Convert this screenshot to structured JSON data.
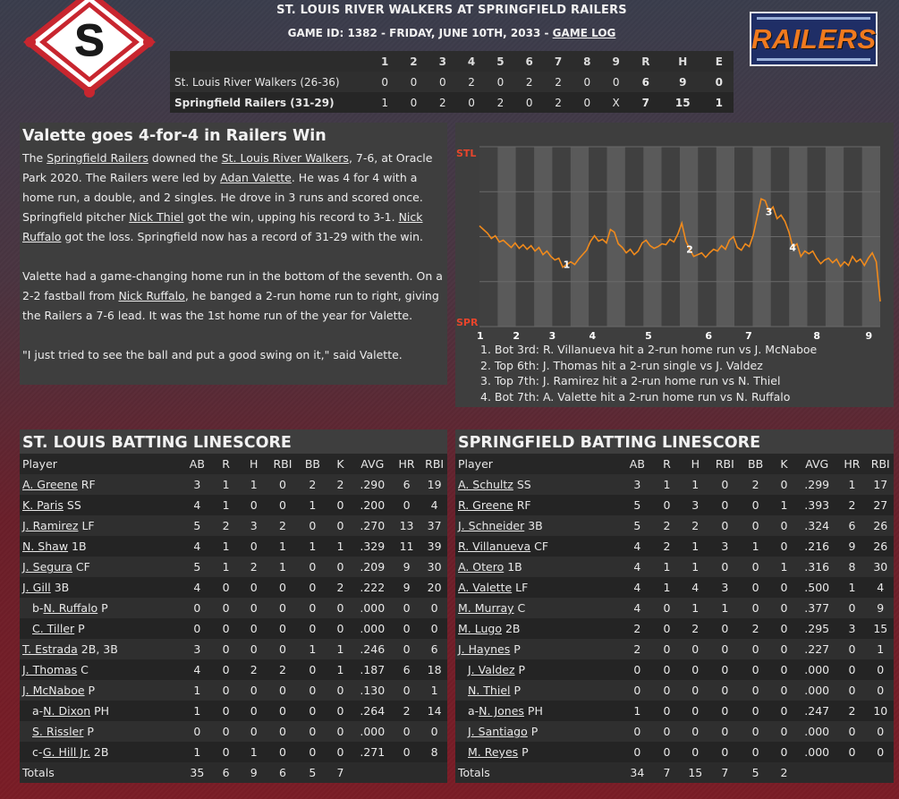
{
  "header": {
    "title": "ST. LOUIS RIVER WALKERS AT SPRINGFIELD RAILERS",
    "game_info": "GAME ID: 1382 - FRIDAY, JUNE 10TH, 2033 - ",
    "game_log_link": "GAME LOG",
    "home_logo_letter": "S",
    "right_logo_word": "RAILERS"
  },
  "linescore": {
    "columns": [
      "1",
      "2",
      "3",
      "4",
      "5",
      "6",
      "7",
      "8",
      "9",
      "R",
      "H",
      "E"
    ],
    "rows": [
      {
        "team": "St. Louis River Walkers (26-36)",
        "innings": [
          "0",
          "0",
          "0",
          "2",
          "0",
          "2",
          "2",
          "0",
          "0"
        ],
        "r": "6",
        "h": "9",
        "e": "0"
      },
      {
        "team": "Springfield Railers (31-29)",
        "innings": [
          "1",
          "0",
          "2",
          "0",
          "2",
          "0",
          "2",
          "0",
          "X"
        ],
        "r": "7",
        "h": "15",
        "e": "1"
      }
    ]
  },
  "story": {
    "headline": "Valette goes 4-for-4 in Railers Win",
    "p1": [
      {
        "t": "The "
      },
      {
        "t": "Springfield Railers",
        "link": true
      },
      {
        "t": " downed the "
      },
      {
        "t": "St. Louis River Walkers",
        "link": true
      },
      {
        "t": ", 7-6, at Oracle Park 2020. The Railers were led by "
      },
      {
        "t": "Adan Valette",
        "link": true
      },
      {
        "t": ". He was 4 for 4 with a home run, a double, and 2 singles. He drove in 3 runs and scored once. Springfield pitcher "
      },
      {
        "t": "Nick Thiel",
        "link": true
      },
      {
        "t": " got the win, upping his record to 3-1. "
      },
      {
        "t": "Nick Ruffalo",
        "link": true
      },
      {
        "t": " got the loss. Springfield now has a record of 31-29 with the win."
      }
    ],
    "p2": [
      {
        "t": "Valette had a game-changing home run in the bottom of the seventh. On a 2-2 fastball from "
      },
      {
        "t": "Nick Ruffalo",
        "link": true
      },
      {
        "t": ", he banged a 2-run home run to right, giving the Railers a 7-6 lead. It was the 1st home run of the year for Valette."
      }
    ],
    "p3": [
      {
        "t": "\"I just tried to see the ball and put a good swing on it,\" said Valette."
      }
    ]
  },
  "chart_data": {
    "type": "line",
    "y_top_label": "STL",
    "y_bottom_label": "SPR",
    "x_ticks": [
      "1",
      "2",
      "3",
      "4",
      "5",
      "6",
      "7",
      "8",
      "9"
    ],
    "ylim": [
      -1,
      1
    ],
    "series": [
      {
        "values": [
          0.12,
          0.08,
          0.04,
          -0.02,
          0.01,
          -0.06,
          -0.04,
          -0.08,
          -0.12,
          -0.07,
          -0.13,
          -0.09,
          -0.14,
          -0.1,
          -0.16,
          -0.12,
          -0.2,
          -0.16,
          -0.22,
          -0.26,
          -0.24,
          -0.34,
          -0.31,
          -0.28,
          -0.31,
          -0.25,
          -0.2,
          -0.15,
          -0.05,
          0.01,
          -0.05,
          -0.03,
          -0.07,
          0.08,
          0.05,
          -0.08,
          -0.12,
          -0.18,
          -0.14,
          -0.2,
          -0.16,
          -0.07,
          -0.04,
          -0.1,
          -0.13,
          -0.11,
          -0.08,
          -0.09,
          -0.03,
          -0.06,
          0.03,
          0.15,
          -0.05,
          -0.14,
          -0.22,
          -0.2,
          -0.18,
          -0.23,
          -0.18,
          -0.14,
          -0.16,
          -0.1,
          -0.14,
          -0.04,
          0.0,
          -0.12,
          -0.15,
          -0.08,
          -0.11,
          0.02,
          0.22,
          0.42,
          0.4,
          0.28,
          0.33,
          0.2,
          0.24,
          0.17,
          0.05,
          -0.12,
          -0.08,
          -0.22,
          -0.16,
          -0.19,
          -0.16,
          -0.24,
          -0.3,
          -0.26,
          -0.24,
          -0.29,
          -0.25,
          -0.33,
          -0.28,
          -0.32,
          -0.22,
          -0.28,
          -0.25,
          -0.32,
          -0.24,
          -0.18,
          -0.28,
          -0.72
        ]
      }
    ],
    "markers": [
      {
        "label": "1",
        "index": 22
      },
      {
        "label": "2",
        "index": 53
      },
      {
        "label": "3",
        "index": 73
      },
      {
        "label": "4",
        "index": 79
      }
    ],
    "plays": [
      "1. Bot 3rd: R. Villanueva hit a 2-run home run vs J. McNaboe",
      "2. Top 6th: J. Thomas hit a 2-run single vs J. Valdez",
      "3. Top 7th: J. Ramirez hit a 2-run home run vs N. Thiel",
      "4. Bot 7th: A. Valette hit a 2-run home run vs N. Ruffalo"
    ],
    "colors": {
      "line": "#f08a1c",
      "stripe_light": "#5a5a5a",
      "stripe_dark": "#404040",
      "axis_label": "#e8452c"
    }
  },
  "batting": {
    "columns": [
      "Player",
      "AB",
      "R",
      "H",
      "RBI",
      "BB",
      "K",
      "AVG",
      "HR",
      "RBI"
    ],
    "away": {
      "title": "ST. LOUIS BATTING LINESCORE",
      "rows": [
        {
          "prefix": "",
          "name": "A. Greene",
          "pos": " RF",
          "sub": false,
          "s": [
            "3",
            "1",
            "1",
            "0",
            "2",
            "2",
            ".290",
            "6",
            "19"
          ]
        },
        {
          "prefix": "",
          "name": "K. Paris",
          "pos": " SS",
          "sub": false,
          "s": [
            "4",
            "1",
            "0",
            "0",
            "1",
            "0",
            ".200",
            "0",
            "4"
          ]
        },
        {
          "prefix": "",
          "name": "J. Ramirez",
          "pos": " LF",
          "sub": false,
          "s": [
            "5",
            "2",
            "3",
            "2",
            "0",
            "0",
            ".270",
            "13",
            "37"
          ]
        },
        {
          "prefix": "",
          "name": "N. Shaw",
          "pos": " 1B",
          "sub": false,
          "s": [
            "4",
            "1",
            "0",
            "1",
            "1",
            "1",
            ".329",
            "11",
            "39"
          ]
        },
        {
          "prefix": "",
          "name": "J. Segura",
          "pos": " CF",
          "sub": false,
          "s": [
            "5",
            "1",
            "2",
            "1",
            "0",
            "0",
            ".209",
            "9",
            "30"
          ]
        },
        {
          "prefix": "",
          "name": "J. Gill",
          "pos": " 3B",
          "sub": false,
          "s": [
            "4",
            "0",
            "0",
            "0",
            "0",
            "2",
            ".222",
            "9",
            "20"
          ]
        },
        {
          "prefix": "b-",
          "name": "N. Ruffalo",
          "pos": " P",
          "sub": true,
          "s": [
            "0",
            "0",
            "0",
            "0",
            "0",
            "0",
            ".000",
            "0",
            "0"
          ]
        },
        {
          "prefix": "",
          "name": "C. Tiller",
          "pos": " P",
          "sub": true,
          "s": [
            "0",
            "0",
            "0",
            "0",
            "0",
            "0",
            ".000",
            "0",
            "0"
          ]
        },
        {
          "prefix": "",
          "name": "T. Estrada",
          "pos": " 2B, 3B",
          "sub": false,
          "s": [
            "3",
            "0",
            "0",
            "0",
            "1",
            "1",
            ".246",
            "0",
            "6"
          ]
        },
        {
          "prefix": "",
          "name": "J. Thomas",
          "pos": " C",
          "sub": false,
          "s": [
            "4",
            "0",
            "2",
            "2",
            "0",
            "1",
            ".187",
            "6",
            "18"
          ]
        },
        {
          "prefix": "",
          "name": "J. McNaboe",
          "pos": " P",
          "sub": false,
          "s": [
            "1",
            "0",
            "0",
            "0",
            "0",
            "0",
            ".130",
            "0",
            "1"
          ]
        },
        {
          "prefix": "a-",
          "name": "N. Dixon",
          "pos": " PH",
          "sub": true,
          "s": [
            "1",
            "0",
            "0",
            "0",
            "0",
            "0",
            ".264",
            "2",
            "14"
          ]
        },
        {
          "prefix": "",
          "name": "S. Rissler",
          "pos": " P",
          "sub": true,
          "s": [
            "0",
            "0",
            "0",
            "0",
            "0",
            "0",
            ".000",
            "0",
            "0"
          ]
        },
        {
          "prefix": "c-",
          "name": "G. Hill Jr.",
          "pos": " 2B",
          "sub": true,
          "s": [
            "1",
            "0",
            "1",
            "0",
            "0",
            "0",
            ".271",
            "0",
            "8"
          ]
        }
      ],
      "totals": {
        "label": "Totals",
        "s": [
          "35",
          "6",
          "9",
          "6",
          "5",
          "7"
        ]
      }
    },
    "home": {
      "title": "SPRINGFIELD BATTING LINESCORE",
      "rows": [
        {
          "prefix": "",
          "name": "A. Schultz",
          "pos": " SS",
          "sub": false,
          "s": [
            "3",
            "1",
            "1",
            "0",
            "2",
            "0",
            ".299",
            "1",
            "17"
          ]
        },
        {
          "prefix": "",
          "name": "R. Greene",
          "pos": " RF",
          "sub": false,
          "s": [
            "5",
            "0",
            "3",
            "0",
            "0",
            "1",
            ".393",
            "2",
            "27"
          ]
        },
        {
          "prefix": "",
          "name": "J. Schneider",
          "pos": " 3B",
          "sub": false,
          "s": [
            "5",
            "2",
            "2",
            "0",
            "0",
            "0",
            ".324",
            "6",
            "26"
          ]
        },
        {
          "prefix": "",
          "name": "R. Villanueva",
          "pos": " CF",
          "sub": false,
          "s": [
            "4",
            "2",
            "1",
            "3",
            "1",
            "0",
            ".216",
            "9",
            "26"
          ]
        },
        {
          "prefix": "",
          "name": "A. Otero",
          "pos": " 1B",
          "sub": false,
          "s": [
            "4",
            "1",
            "1",
            "0",
            "0",
            "1",
            ".316",
            "8",
            "30"
          ]
        },
        {
          "prefix": "",
          "name": "A. Valette",
          "pos": " LF",
          "sub": false,
          "s": [
            "4",
            "1",
            "4",
            "3",
            "0",
            "0",
            ".500",
            "1",
            "4"
          ]
        },
        {
          "prefix": "",
          "name": "M. Murray",
          "pos": " C",
          "sub": false,
          "s": [
            "4",
            "0",
            "1",
            "1",
            "0",
            "0",
            ".377",
            "0",
            "9"
          ]
        },
        {
          "prefix": "",
          "name": "M. Lugo",
          "pos": " 2B",
          "sub": false,
          "s": [
            "2",
            "0",
            "2",
            "0",
            "2",
            "0",
            ".295",
            "3",
            "15"
          ]
        },
        {
          "prefix": "",
          "name": "J. Haynes",
          "pos": " P",
          "sub": false,
          "s": [
            "2",
            "0",
            "0",
            "0",
            "0",
            "0",
            ".227",
            "0",
            "1"
          ]
        },
        {
          "prefix": "",
          "name": "J. Valdez",
          "pos": " P",
          "sub": true,
          "s": [
            "0",
            "0",
            "0",
            "0",
            "0",
            "0",
            ".000",
            "0",
            "0"
          ]
        },
        {
          "prefix": "",
          "name": "N. Thiel",
          "pos": " P",
          "sub": true,
          "s": [
            "0",
            "0",
            "0",
            "0",
            "0",
            "0",
            ".000",
            "0",
            "0"
          ]
        },
        {
          "prefix": "a-",
          "name": "N. Jones",
          "pos": " PH",
          "sub": true,
          "s": [
            "1",
            "0",
            "0",
            "0",
            "0",
            "0",
            ".247",
            "2",
            "10"
          ]
        },
        {
          "prefix": "",
          "name": "J. Santiago",
          "pos": " P",
          "sub": true,
          "s": [
            "0",
            "0",
            "0",
            "0",
            "0",
            "0",
            ".000",
            "0",
            "0"
          ]
        },
        {
          "prefix": "",
          "name": "M. Reyes",
          "pos": " P",
          "sub": true,
          "s": [
            "0",
            "0",
            "0",
            "0",
            "0",
            "0",
            ".000",
            "0",
            "0"
          ]
        }
      ],
      "totals": {
        "label": "Totals",
        "s": [
          "34",
          "7",
          "15",
          "7",
          "5",
          "2"
        ]
      }
    }
  }
}
